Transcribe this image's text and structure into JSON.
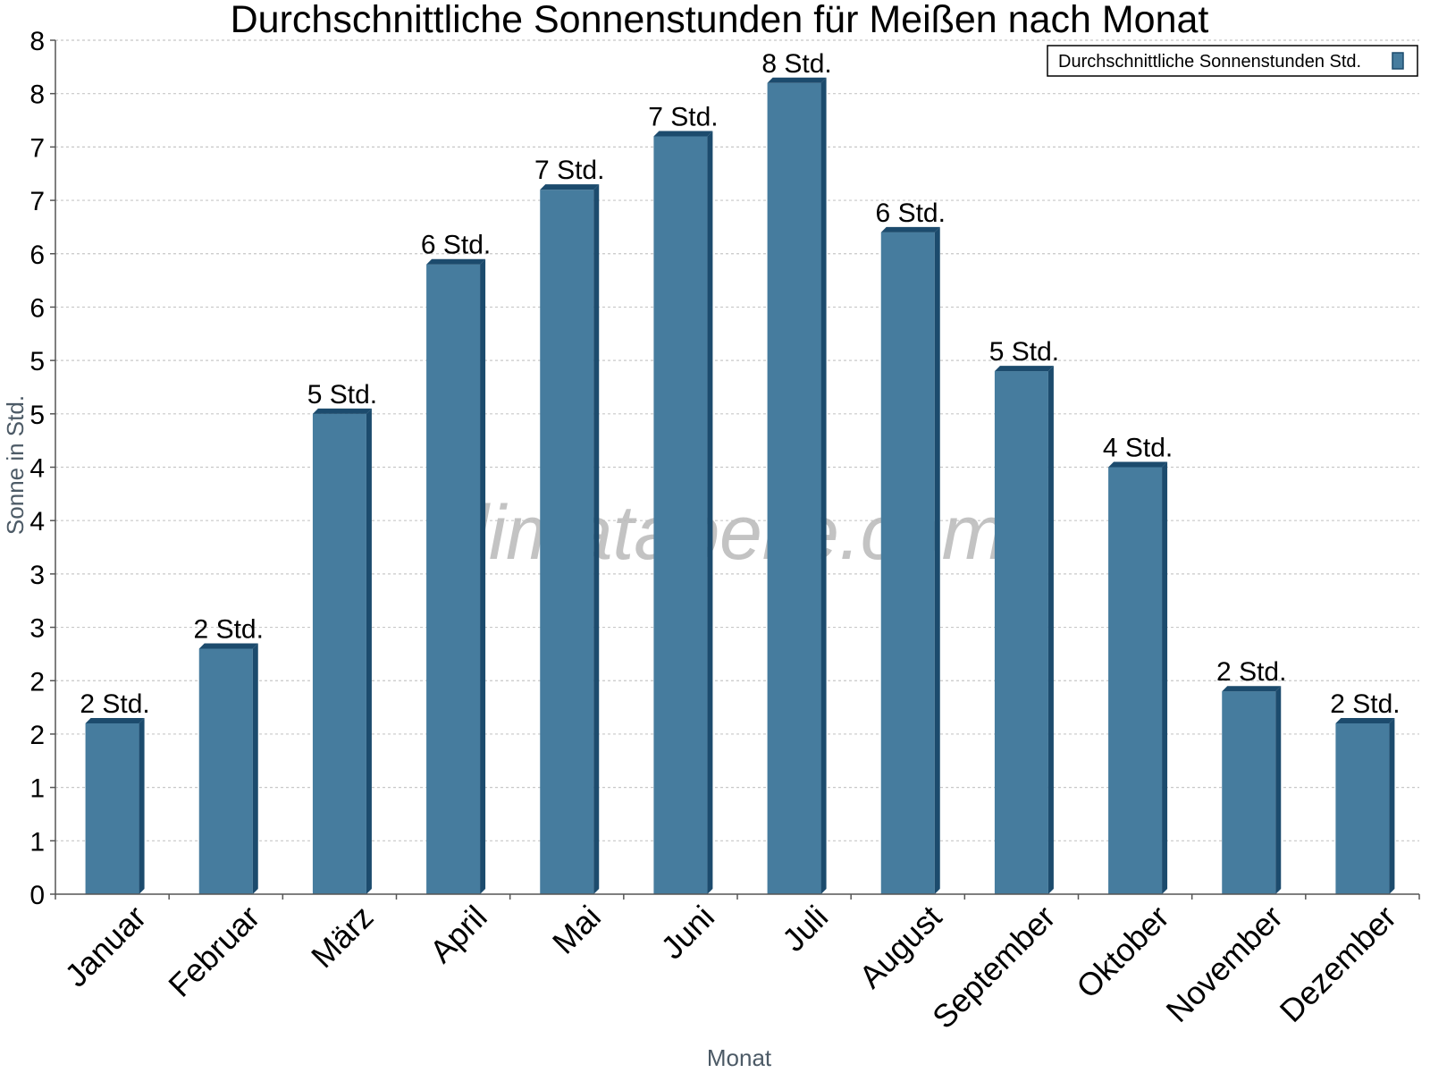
{
  "chart_data": {
    "type": "bar",
    "title": "Durchschnittliche Sonnenstunden für Meißen nach Monat",
    "xlabel": "Monat",
    "ylabel": "Sonne in Std.",
    "ylim": [
      0,
      8
    ],
    "y_ticks": [
      {
        "value": 0,
        "label": "0"
      },
      {
        "value": 0.5,
        "label": "1"
      },
      {
        "value": 1,
        "label": "1"
      },
      {
        "value": 1.5,
        "label": "2"
      },
      {
        "value": 2,
        "label": "2"
      },
      {
        "value": 2.5,
        "label": "3"
      },
      {
        "value": 3,
        "label": "3"
      },
      {
        "value": 3.5,
        "label": "4"
      },
      {
        "value": 4,
        "label": "4"
      },
      {
        "value": 4.5,
        "label": "5"
      },
      {
        "value": 5,
        "label": "5"
      },
      {
        "value": 5.5,
        "label": "6"
      },
      {
        "value": 6,
        "label": "6"
      },
      {
        "value": 6.5,
        "label": "7"
      },
      {
        "value": 7,
        "label": "7"
      },
      {
        "value": 7.5,
        "label": "8"
      },
      {
        "value": 8,
        "label": "8"
      }
    ],
    "grid": true,
    "legend_position": "top-right",
    "categories": [
      "Januar",
      "Februar",
      "März",
      "April",
      "Mai",
      "Juni",
      "Juli",
      "August",
      "September",
      "Oktober",
      "November",
      "Dezember"
    ],
    "series": [
      {
        "name": "Durchschnittliche Sonnenstunden Std.",
        "values": [
          1.6,
          2.3,
          4.5,
          5.9,
          6.6,
          7.1,
          7.6,
          6.2,
          4.9,
          4.0,
          1.9,
          1.6
        ],
        "labels": [
          "2 Std.",
          "2 Std.",
          "5 Std.",
          "6 Std.",
          "7 Std.",
          "7 Std.",
          "8 Std.",
          "6 Std.",
          "5 Std.",
          "4 Std.",
          "2 Std.",
          "2 Std."
        ]
      }
    ],
    "watermark": "klimatabelle.com",
    "colors": {
      "bar": "#467c9e",
      "bar_side": "#1c4b6d",
      "bar_top": "#1c4b6d",
      "grid": "#c8c8c8",
      "axis": "#555555"
    }
  }
}
